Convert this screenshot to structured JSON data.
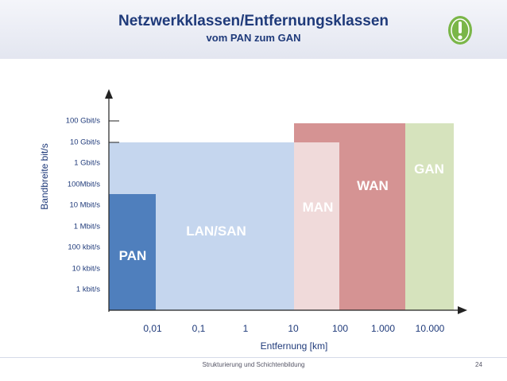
{
  "header": {
    "title": "Netzwerkklassen/Entfernungsklassen",
    "subtitle": "vom PAN zum GAN"
  },
  "badge": {
    "icon": "exclamation-icon",
    "color": "#7ab648"
  },
  "axes": {
    "ylabel": "Bandbreite bit/s",
    "xlabel": "Entfernung [km]",
    "yticks": [
      "100 Gbit/s",
      "10 Gbit/s",
      "1 Gbit/s",
      "100Mbit/s",
      "10 Mbit/s",
      "1 Mbit/s",
      "100 kbit/s",
      "10 kbit/s",
      "1 kbit/s"
    ],
    "xticks": [
      "0,01",
      "0,1",
      "1",
      "10",
      "100",
      "1.000",
      "10.000"
    ]
  },
  "regions": [
    {
      "name": "LAN/SAN",
      "color": "#c5d6ee"
    },
    {
      "name": "PAN",
      "color": "#4f7fbd"
    },
    {
      "name": "GAN",
      "color": "#d6e3bd"
    },
    {
      "name": "WAN",
      "color": "#d59393"
    },
    {
      "name": "MAN",
      "color": "#f0dada"
    }
  ],
  "footer": {
    "text": "Strukturierung und Schichtenbildung",
    "page": "24"
  }
}
